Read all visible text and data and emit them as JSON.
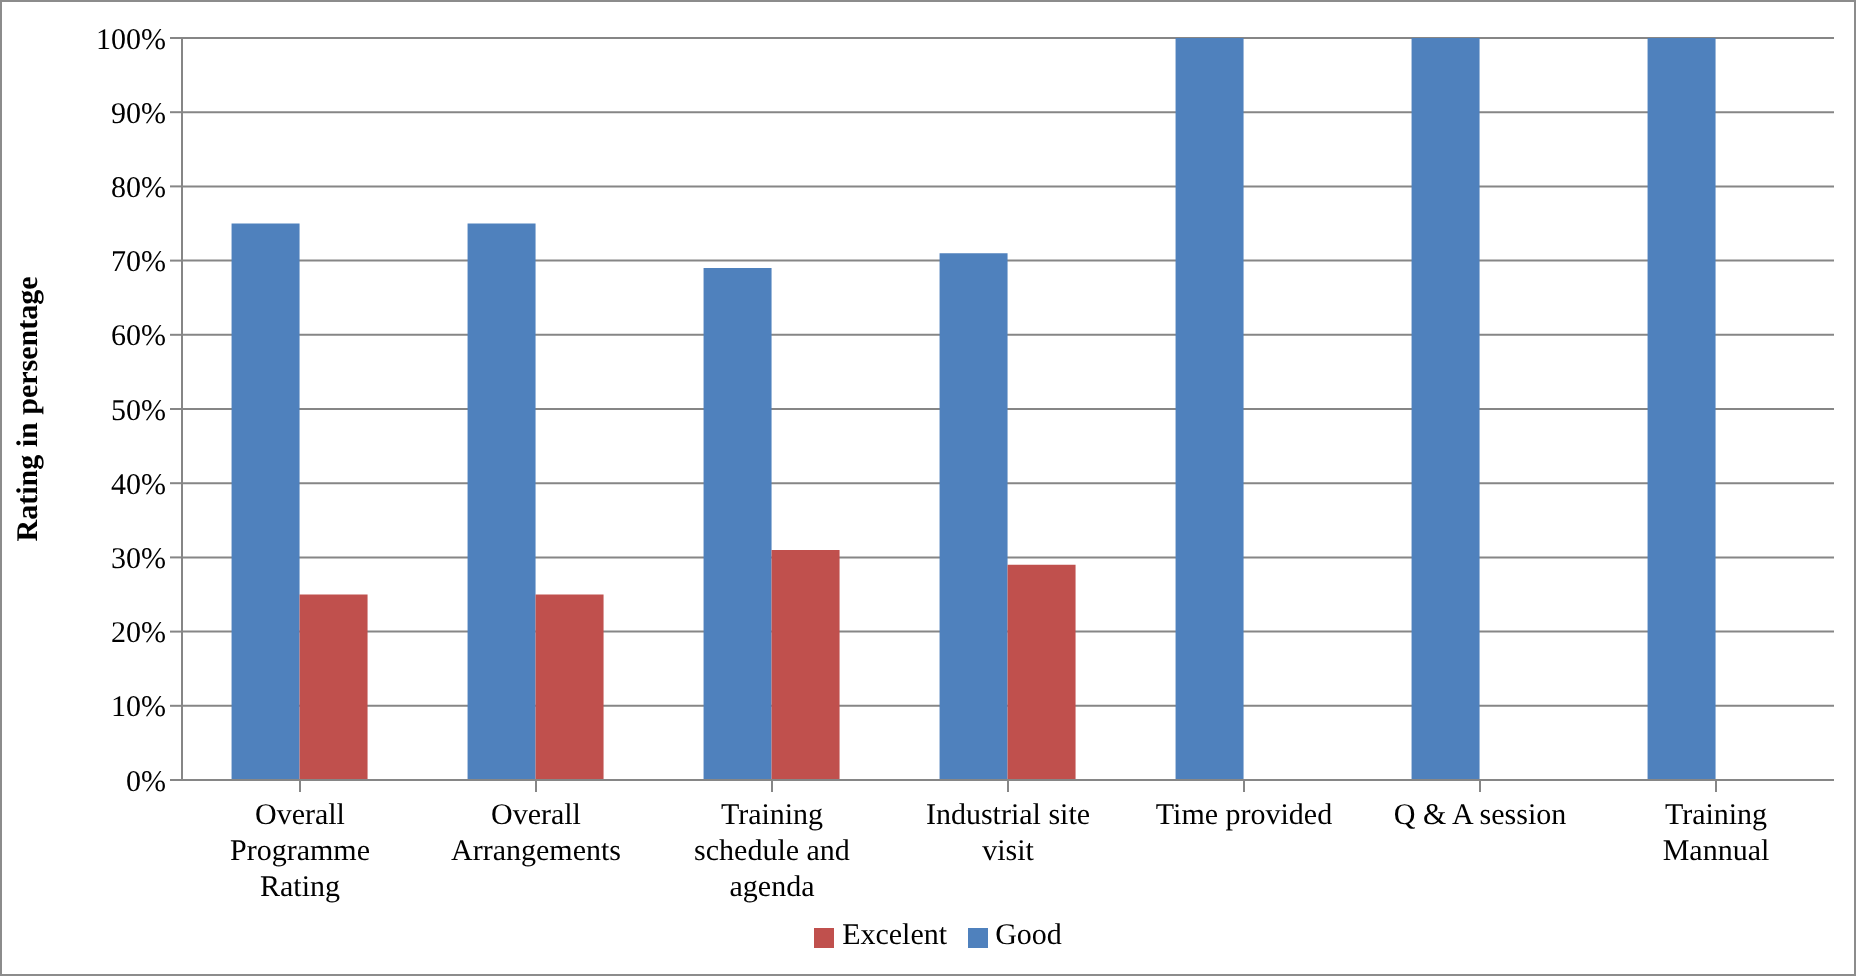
{
  "chart_data": {
    "type": "bar",
    "ylabel": "Rating in persentage",
    "categories": [
      "Overall Programme Rating",
      "Overall Arrangements",
      "Training schedule and agenda",
      "Industrial site visit",
      "Time provided",
      "Q & A session",
      "Training Mannual"
    ],
    "series": [
      {
        "name": "Good",
        "color": "#4f81bd",
        "values": [
          75,
          75,
          69,
          71,
          100,
          100,
          100
        ]
      },
      {
        "name": "Excelent",
        "color": "#c0504d",
        "values": [
          25,
          25,
          31,
          29,
          0,
          0,
          0
        ]
      }
    ],
    "ylim": [
      0,
      100
    ],
    "yticks": [
      {
        "value": 0,
        "label": "0%"
      },
      {
        "value": 10,
        "label": "10%"
      },
      {
        "value": 20,
        "label": "20%"
      },
      {
        "value": 30,
        "label": "30%"
      },
      {
        "value": 40,
        "label": "40%"
      },
      {
        "value": 50,
        "label": "50%"
      },
      {
        "value": 60,
        "label": "60%"
      },
      {
        "value": 70,
        "label": "70%"
      },
      {
        "value": 80,
        "label": "80%"
      },
      {
        "value": 90,
        "label": "90%"
      },
      {
        "value": 100,
        "label": "100%"
      }
    ],
    "grid": "y",
    "legend": "bottom"
  }
}
